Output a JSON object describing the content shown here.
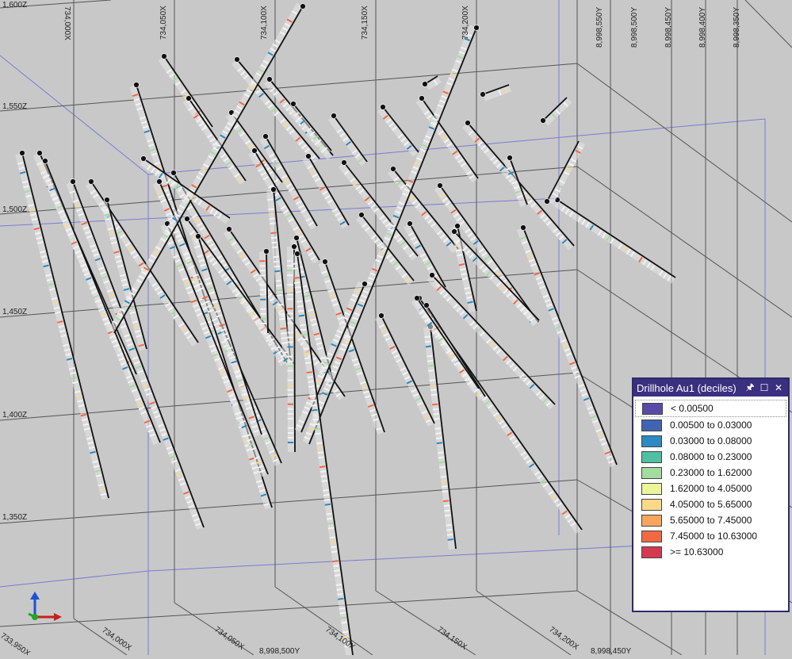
{
  "axes_labels": {
    "x_top": [
      "734,000X",
      "734,050X",
      "734,100X",
      "734,150X",
      "734,200X"
    ],
    "y_top": [
      "8,998,550Y",
      "8,998,500Y",
      "8,998,450Y",
      "8,998,400Y",
      "8,998,350Y"
    ],
    "z": [
      "1,600Z",
      "1,550Z",
      "1,500Z",
      "1,450Z",
      "1,400Z",
      "1,350Z"
    ],
    "x_bottom": [
      "733,950X",
      "734,000X",
      "734,050X",
      "734,100X",
      "734,150X",
      "734,200X"
    ],
    "y_bottom": [
      "8,998,500Y",
      "8,998,450Y"
    ]
  },
  "legend": {
    "title": "Drillhole Au1 (deciles)",
    "buttons": {
      "pin": "🖈",
      "maximize": "☐",
      "close": "✕"
    },
    "items": [
      {
        "label": "< 0.00500",
        "color": "#5a4aa8"
      },
      {
        "label": "0.00500 to 0.03000",
        "color": "#3f64b4"
      },
      {
        "label": "0.03000 to 0.08000",
        "color": "#2c8ac2"
      },
      {
        "label": "0.08000 to 0.23000",
        "color": "#4fc0a2"
      },
      {
        "label": "0.23000 to 1.62000",
        "color": "#a4dca0"
      },
      {
        "label": "1.62000 to 4.05000",
        "color": "#ecf59a"
      },
      {
        "label": "4.05000 to 5.65000",
        "color": "#fcd98a"
      },
      {
        "label": "5.65000 to 7.45000",
        "color": "#fba55c"
      },
      {
        "label": "7.45000 to 10.63000",
        "color": "#f26941"
      },
      {
        "label": ">= 10.63000",
        "color": "#d6394f"
      }
    ]
  }
}
